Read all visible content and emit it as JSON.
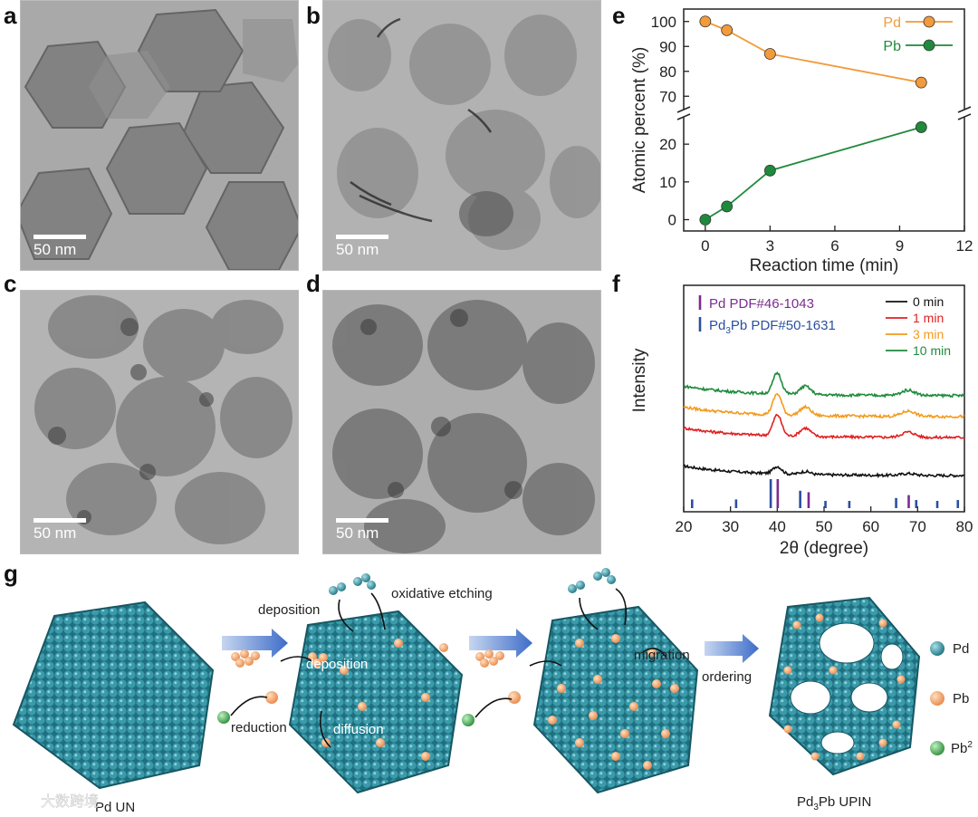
{
  "panels": {
    "a": {
      "letter": "a",
      "scale": "50 nm"
    },
    "b": {
      "letter": "b",
      "scale": "50 nm"
    },
    "c": {
      "letter": "c",
      "scale": "50 nm"
    },
    "d": {
      "letter": "d",
      "scale": "50 nm"
    },
    "e": {
      "letter": "e"
    },
    "f": {
      "letter": "f"
    },
    "g": {
      "letter": "g"
    }
  },
  "chart_data": [
    {
      "type": "line",
      "panel": "e",
      "xlabel": "Reaction time (min)",
      "ylabel": "Atomic percent (%)",
      "xlim": [
        -1,
        12
      ],
      "xticks": [
        0,
        3,
        6,
        9,
        12
      ],
      "y_break": true,
      "yticks_upper": [
        70,
        80,
        90,
        100
      ],
      "yticks_lower": [
        0,
        10,
        20
      ],
      "legend_position": "top-right",
      "series": [
        {
          "name": "Pd",
          "color": "#f39a3a",
          "x": [
            0,
            1,
            3,
            10
          ],
          "y": [
            100,
            96.5,
            87,
            75.5
          ]
        },
        {
          "name": "Pb",
          "color": "#1f8a3c",
          "x": [
            0,
            1,
            3,
            10
          ],
          "y": [
            0,
            3.5,
            13,
            24.5
          ]
        }
      ]
    },
    {
      "type": "line",
      "panel": "f",
      "xlabel": "2θ (degree)",
      "ylabel": "Intensity",
      "xlim": [
        20,
        80
      ],
      "xticks": [
        20,
        30,
        40,
        50,
        60,
        70,
        80
      ],
      "legend_position": "top-right",
      "series": [
        {
          "name": "0 min",
          "color": "#111111",
          "offset": 0.0
        },
        {
          "name": "1 min",
          "color": "#e02020",
          "offset": 1.0
        },
        {
          "name": "3 min",
          "color": "#f39a1e",
          "offset": 1.55
        },
        {
          "name": "10 min",
          "color": "#1f8a3c",
          "offset": 2.1
        }
      ],
      "peaks": [
        {
          "x": 40,
          "height": 0.55,
          "width": 1.3
        },
        {
          "x": 46,
          "height": 0.22,
          "width": 1.6
        },
        {
          "x": 68,
          "height": 0.14,
          "width": 2.0
        }
      ],
      "references": [
        {
          "name": "Pd PDF#46-1043",
          "color": "#7a2c8f",
          "lines": [
            {
              "x": 40.1,
              "h": 1.0
            },
            {
              "x": 46.7,
              "h": 0.55
            },
            {
              "x": 68.1,
              "h": 0.45
            }
          ]
        },
        {
          "name_prefix": "Pd",
          "name_sub": "3",
          "name_suffix": "Pb PDF#50-1631",
          "color": "#2b4fa0",
          "lines": [
            {
              "x": 21.8,
              "h": 0.3
            },
            {
              "x": 31.2,
              "h": 0.3
            },
            {
              "x": 38.6,
              "h": 1.0
            },
            {
              "x": 44.9,
              "h": 0.6
            },
            {
              "x": 50.3,
              "h": 0.25
            },
            {
              "x": 55.4,
              "h": 0.25
            },
            {
              "x": 65.4,
              "h": 0.35
            },
            {
              "x": 69.7,
              "h": 0.28
            },
            {
              "x": 74.2,
              "h": 0.25
            },
            {
              "x": 78.6,
              "h": 0.28
            }
          ]
        }
      ]
    }
  ],
  "scheme": {
    "start_label": "Pd UN",
    "end_label_prefix": "Pd",
    "end_label_sub": "3",
    "end_label_suffix": "Pb UPIN",
    "labels": {
      "deposition_top": "deposition",
      "oxidative_etching": "oxidative etching",
      "deposition_mid": "deposition",
      "reduction": "reduction",
      "diffusion": "diffusion",
      "migration": "migration",
      "ordering": "ordering"
    },
    "legend": [
      {
        "name": "Pd",
        "color": "#2f8a99"
      },
      {
        "name": "Pb",
        "color": "#f0a060"
      },
      {
        "name": "Pb",
        "sup": "2",
        "color": "#4caf50"
      }
    ],
    "watermark": "大数跨境"
  }
}
